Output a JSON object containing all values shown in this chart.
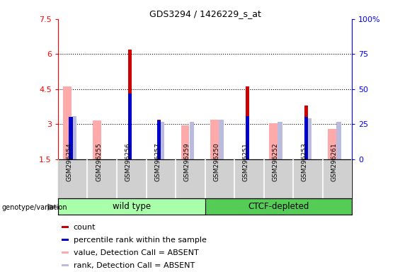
{
  "title": "GDS3294 / 1426229_s_at",
  "samples": [
    "GSM296254",
    "GSM296255",
    "GSM296256",
    "GSM296257",
    "GSM296259",
    "GSM296250",
    "GSM296251",
    "GSM296252",
    "GSM296253",
    "GSM296261"
  ],
  "count_values": [
    1.5,
    1.5,
    6.2,
    3.2,
    1.5,
    1.5,
    4.6,
    1.5,
    3.8,
    1.5
  ],
  "percentile_values": [
    3.3,
    1.5,
    4.3,
    3.15,
    1.5,
    1.5,
    3.35,
    1.5,
    3.3,
    1.5
  ],
  "value_absent": [
    4.6,
    3.15,
    1.5,
    1.5,
    2.95,
    3.2,
    1.5,
    3.05,
    1.5,
    2.8
  ],
  "rank_absent": [
    3.35,
    1.5,
    1.5,
    3.1,
    3.1,
    3.2,
    1.5,
    3.1,
    3.25,
    3.1
  ],
  "ylim_left": [
    1.5,
    7.5
  ],
  "ylim_right": [
    0,
    100
  ],
  "yticks_left": [
    1.5,
    3.0,
    4.5,
    6.0,
    7.5
  ],
  "ytick_labels_left": [
    "1.5",
    "3",
    "4.5",
    "6",
    "7.5"
  ],
  "yticks_right": [
    0,
    25,
    50,
    75,
    100
  ],
  "ytick_labels_right": [
    "0",
    "25",
    "50",
    "75",
    "100%"
  ],
  "hlines": [
    3.0,
    4.5,
    6.0
  ],
  "color_count": "#cc0000",
  "color_percentile": "#0000cc",
  "color_value_absent": "#ffaaaa",
  "color_rank_absent": "#bbbbdd",
  "legend_items": [
    {
      "label": "count",
      "color": "#cc0000"
    },
    {
      "label": "percentile rank within the sample",
      "color": "#0000cc"
    },
    {
      "label": "value, Detection Call = ABSENT",
      "color": "#ffaaaa"
    },
    {
      "label": "rank, Detection Call = ABSENT",
      "color": "#bbbbdd"
    }
  ],
  "wt_group": [
    0,
    4
  ],
  "ctcf_group": [
    5,
    9
  ],
  "group_label_wt": "wild type",
  "group_label_ctcf": "CTCF-depleted",
  "group_color_wt": "#aaffaa",
  "group_color_ctcf": "#55cc55"
}
